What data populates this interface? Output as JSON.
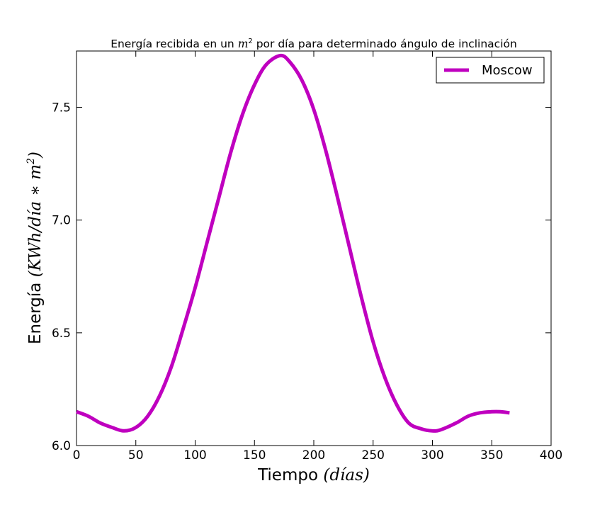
{
  "chart_data": {
    "type": "line",
    "title": "Energía recibida en un m² por día para determinado ángulo de inclinación",
    "title_parts": {
      "before": "Energía recibida en un ",
      "math": "m",
      "sup": "2",
      "after": " por día para determinado ángulo de inclinación"
    },
    "xlabel": "Tiempo (días)",
    "xlabel_parts": {
      "text": "Tiempo ",
      "math": "(días)"
    },
    "ylabel": "Energía (KWh/día ∗ m²)",
    "ylabel_parts": {
      "text": "Energía ",
      "math": "(KWh/día ∗ m",
      "sup": "2",
      "close": ")"
    },
    "xlim": [
      0,
      400
    ],
    "ylim": [
      6.0,
      7.75
    ],
    "xticks": [
      0,
      50,
      100,
      150,
      200,
      250,
      300,
      350,
      400
    ],
    "yticks": [
      6.0,
      6.5,
      7.0,
      7.5
    ],
    "xtick_labels": [
      "0",
      "50",
      "100",
      "150",
      "200",
      "250",
      "300",
      "350",
      "400"
    ],
    "ytick_labels": [
      "6.0",
      "6.5",
      "7.0",
      "7.5"
    ],
    "grid": false,
    "legend_position": "top-right",
    "series": [
      {
        "name": "Moscow",
        "color": "#bf00bf",
        "x": [
          0,
          10,
          20,
          30,
          40,
          50,
          60,
          70,
          80,
          90,
          100,
          110,
          120,
          130,
          140,
          150,
          160,
          172,
          180,
          190,
          200,
          210,
          220,
          230,
          240,
          250,
          260,
          270,
          280,
          290,
          300,
          307,
          320,
          330,
          340,
          350,
          357,
          365
        ],
        "y": [
          6.15,
          6.13,
          6.1,
          6.08,
          6.065,
          6.08,
          6.13,
          6.22,
          6.35,
          6.52,
          6.7,
          6.9,
          7.1,
          7.3,
          7.47,
          7.6,
          7.69,
          7.73,
          7.7,
          7.62,
          7.49,
          7.31,
          7.1,
          6.88,
          6.66,
          6.46,
          6.3,
          6.18,
          6.1,
          6.075,
          6.065,
          6.07,
          6.1,
          6.13,
          6.145,
          6.15,
          6.15,
          6.145
        ]
      }
    ]
  }
}
